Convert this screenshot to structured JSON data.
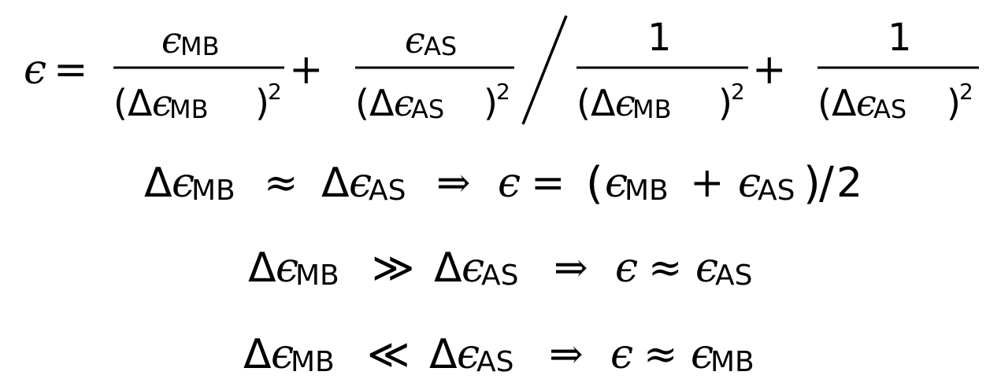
{
  "symbols": {
    "epsilon": "ϵ",
    "delta": "Δ",
    "equals": "=",
    "plus": "+",
    "approx": "≈",
    "implies": "⇒",
    "much_greater": "≫",
    "much_less": "≪",
    "one": "1",
    "two": "2",
    "squared": "2",
    "lparen": "(",
    "rparen": ")",
    "slash": "/",
    "big_slash": "/"
  },
  "subscripts": {
    "mb": "MB",
    "as": "AS"
  },
  "equations": [
    {
      "name": "weighted-average",
      "latex": "\\epsilon = \\frac{\\epsilon_{MB}}{(\\Delta\\epsilon_{MB})^2} + \\frac{\\epsilon_{AS}}{(\\Delta\\epsilon_{AS})^2} \\Big/ \\frac{1}{(\\Delta\\epsilon_{MB})^2} + \\frac{1}{(\\Delta\\epsilon_{AS})^2}"
    },
    {
      "name": "equal-uncertainty",
      "latex": "\\Delta\\epsilon_{MB} \\approx \\Delta\\epsilon_{AS} \\Rightarrow \\epsilon = (\\epsilon_{MB} + \\epsilon_{AS})/2"
    },
    {
      "name": "mb-dominant-uncertainty",
      "latex": "\\Delta\\epsilon_{MB} \\gg \\Delta\\epsilon_{AS} \\Rightarrow \\epsilon \\approx \\epsilon_{AS}"
    },
    {
      "name": "as-dominant-uncertainty",
      "latex": "\\Delta\\epsilon_{MB} \\ll \\Delta\\epsilon_{AS} \\Rightarrow \\epsilon \\approx \\epsilon_{MB}"
    }
  ]
}
